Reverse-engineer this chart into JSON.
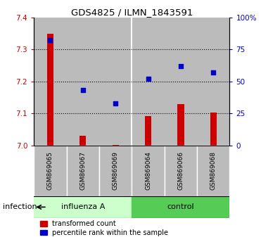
{
  "title": "GDS4825 / ILMN_1843591",
  "samples": [
    "GSM869065",
    "GSM869067",
    "GSM869069",
    "GSM869064",
    "GSM869066",
    "GSM869068"
  ],
  "red_values": [
    7.348,
    7.03,
    7.002,
    7.092,
    7.128,
    7.102
  ],
  "blue_values": [
    82,
    43,
    33,
    52,
    62,
    57
  ],
  "ylim_left": [
    7.0,
    7.4
  ],
  "ylim_right": [
    0,
    100
  ],
  "yticks_left": [
    7.0,
    7.1,
    7.2,
    7.3,
    7.4
  ],
  "yticks_right": [
    0,
    25,
    50,
    75,
    100
  ],
  "ytick_labels_right": [
    "0",
    "25",
    "50",
    "75",
    "100%"
  ],
  "group1_label": "influenza A",
  "group2_label": "control",
  "group1_indices": [
    0,
    1,
    2
  ],
  "group2_indices": [
    3,
    4,
    5
  ],
  "infection_label": "infection",
  "bar_color": "#cc0000",
  "dot_color": "#0000cc",
  "group1_color": "#ccffcc",
  "group2_color": "#55cc55",
  "bg_color": "#bbbbbb",
  "legend_red_label": "transformed count",
  "legend_blue_label": "percentile rank within the sample"
}
